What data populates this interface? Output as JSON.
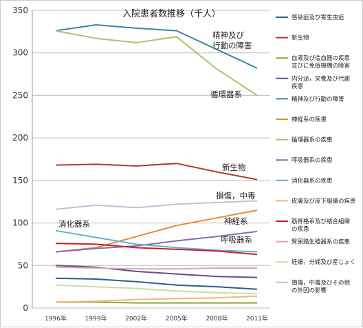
{
  "chart_data": {
    "type": "line",
    "title": "入院患者数推移（千人）",
    "x": [
      "1996年",
      "1999年",
      "2002年",
      "2005年",
      "2008年",
      "2011年"
    ],
    "ylim": [
      0,
      350
    ],
    "yticks": [
      0,
      50,
      100,
      150,
      200,
      250,
      300,
      350
    ],
    "grid": true,
    "legend_position": "right",
    "series": [
      {
        "name": "感染症及び寄生虫症",
        "color": "#2e5f8a",
        "values": [
          35,
          34,
          31,
          27,
          25,
          22
        ]
      },
      {
        "name": "新生物",
        "color": "#b23a32",
        "values": [
          168,
          169,
          167,
          170,
          160,
          151
        ]
      },
      {
        "name": "血液及び造血器の疾患\n並びに免疫機構の障害",
        "color": "#8aa83a",
        "values": [
          7,
          7,
          6,
          6,
          6,
          6
        ]
      },
      {
        "name": "内分泌，栄養及び代謝\n疾患",
        "color": "#6a4c8a",
        "values": [
          50,
          48,
          43,
          40,
          37,
          36
        ]
      },
      {
        "name": "精神及び行動の障害",
        "color": "#3a84a8",
        "values": [
          326,
          333,
          329,
          326,
          304,
          282
        ]
      },
      {
        "name": "神経系の疾患",
        "color": "#e48b32",
        "values": [
          66,
          71,
          84,
          97,
          106,
          115
        ]
      },
      {
        "name": "循環器系の疾患",
        "color": "#a8c46e",
        "values": [
          326,
          317,
          312,
          319,
          281,
          250
        ]
      },
      {
        "name": "呼吸器系の疾患",
        "color": "#8a6ab0",
        "values": [
          66,
          70,
          73,
          79,
          84,
          90
        ]
      },
      {
        "name": "消化器系の疾患",
        "color": "#5fb3cc",
        "values": [
          91,
          83,
          75,
          71,
          68,
          66
        ]
      },
      {
        "name": "皮膚及び皮下組織の疾患",
        "color": "#f2b57a",
        "values": [
          7,
          8,
          10,
          11,
          12,
          14
        ]
      },
      {
        "name": "筋骨格系及び結合組織\nの疾患",
        "color": "#cc1f1f",
        "values": [
          76,
          75,
          71,
          69,
          67,
          63
        ]
      },
      {
        "name": "腎尿路生殖器系の疾患",
        "color": "#d9a8b0",
        "values": [
          48,
          47,
          46,
          46,
          47,
          47
        ]
      },
      {
        "name": "妊娠，分娩及び産じょく",
        "color": "#c8deaa",
        "values": [
          27,
          25,
          23,
          20,
          18,
          17
        ]
      },
      {
        "name": "損傷，中毒及びその他\nの外因の影響",
        "color": "#c2bfda",
        "values": [
          116,
          121,
          118,
          122,
          124,
          126
        ]
      }
    ],
    "annotations": [
      "精神及び\n行動の障害",
      "循環器系",
      "新生物",
      "損傷，中毒",
      "神経系",
      "呼吸器系",
      "消化器系"
    ]
  }
}
